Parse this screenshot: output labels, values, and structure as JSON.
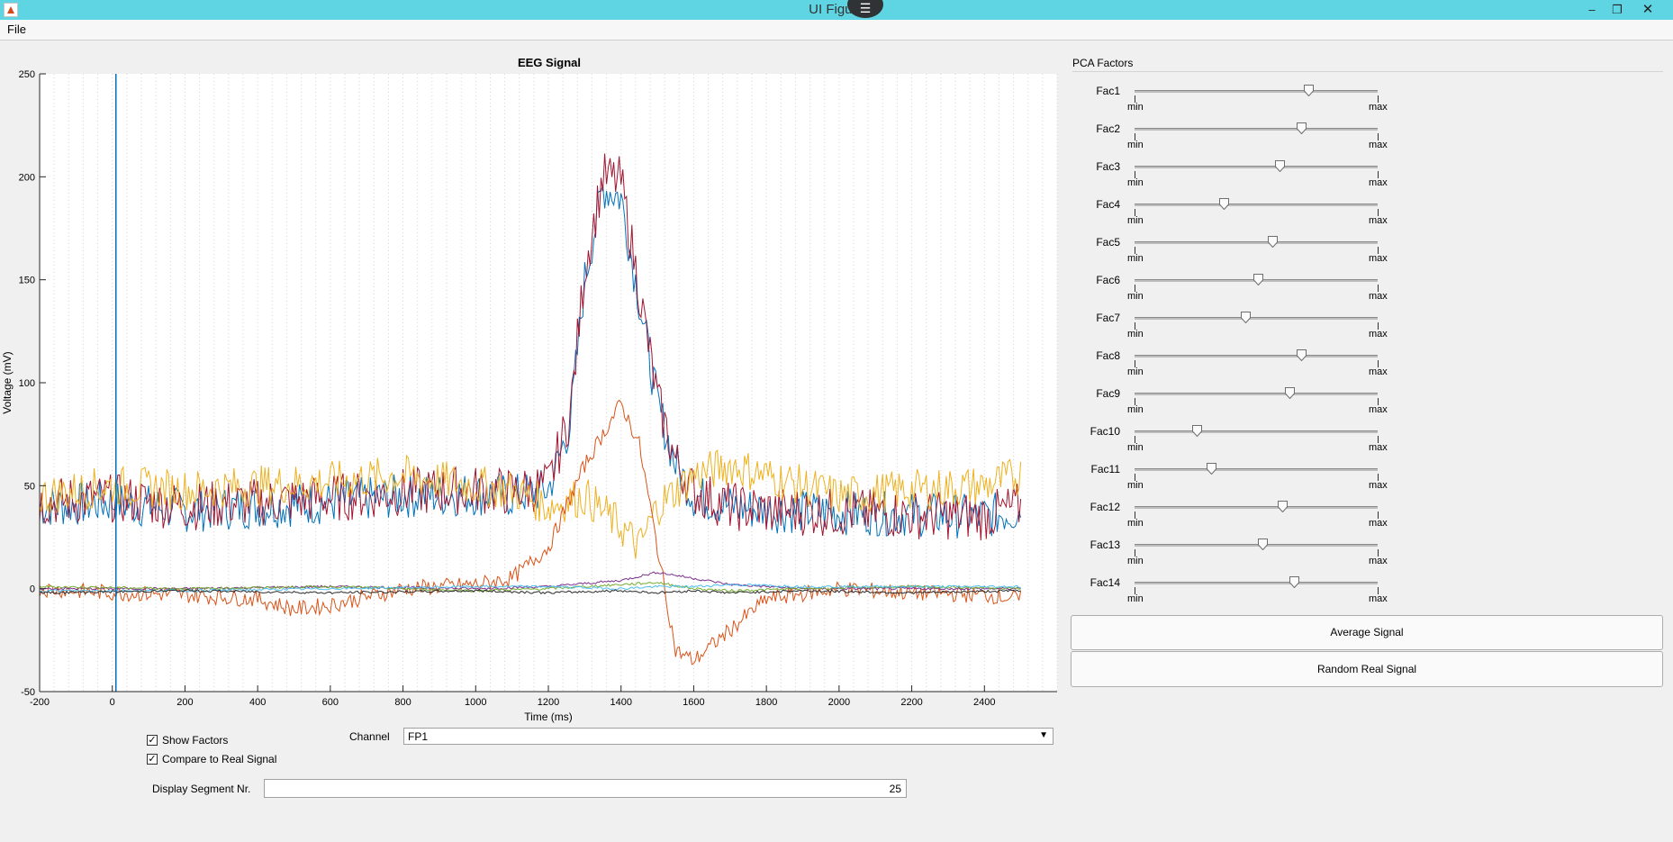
{
  "window": {
    "title": "UI Figure"
  },
  "menu": {
    "file": "File"
  },
  "plot": {
    "title": "EEG Signal",
    "xlabel": "Time (ms)",
    "ylabel": "Voltage (mV)"
  },
  "chart_data": {
    "type": "line",
    "title": "EEG Signal",
    "xlabel": "Time (ms)",
    "ylabel": "Voltage (mV)",
    "xlim": [
      -200,
      2600
    ],
    "ylim": [
      -50,
      250
    ],
    "xticks": [
      -200,
      0,
      200,
      400,
      600,
      800,
      1000,
      1200,
      1400,
      1600,
      1800,
      2000,
      2200,
      2400
    ],
    "yticks": [
      -50,
      0,
      50,
      100,
      150,
      200,
      250
    ],
    "vertical_marker_x": 10,
    "grid": "x-dotted",
    "series": [
      {
        "color": "#0072bd",
        "points": [
          [
            -200,
            40
          ],
          [
            0,
            42
          ],
          [
            200,
            38
          ],
          [
            400,
            40
          ],
          [
            600,
            42
          ],
          [
            800,
            45
          ],
          [
            1000,
            46
          ],
          [
            1100,
            45
          ],
          [
            1200,
            48
          ],
          [
            1260,
            80
          ],
          [
            1300,
            150
          ],
          [
            1350,
            195
          ],
          [
            1400,
            190
          ],
          [
            1450,
            140
          ],
          [
            1500,
            90
          ],
          [
            1550,
            60
          ],
          [
            1600,
            45
          ],
          [
            1700,
            40
          ],
          [
            1800,
            38
          ],
          [
            2000,
            37
          ],
          [
            2200,
            36
          ],
          [
            2400,
            35
          ],
          [
            2500,
            38
          ]
        ]
      },
      {
        "color": "#a2142f",
        "points": [
          [
            -200,
            42
          ],
          [
            0,
            44
          ],
          [
            200,
            40
          ],
          [
            400,
            42
          ],
          [
            600,
            44
          ],
          [
            800,
            47
          ],
          [
            1000,
            48
          ],
          [
            1100,
            47
          ],
          [
            1200,
            50
          ],
          [
            1260,
            85
          ],
          [
            1300,
            155
          ],
          [
            1350,
            200
          ],
          [
            1400,
            198
          ],
          [
            1450,
            145
          ],
          [
            1500,
            92
          ],
          [
            1550,
            62
          ],
          [
            1600,
            47
          ],
          [
            1700,
            40
          ],
          [
            1800,
            38
          ],
          [
            2000,
            37
          ],
          [
            2200,
            36
          ],
          [
            2400,
            35
          ],
          [
            2500,
            40
          ]
        ]
      },
      {
        "color": "#edb120",
        "points": [
          [
            -200,
            45
          ],
          [
            0,
            50
          ],
          [
            200,
            48
          ],
          [
            400,
            50
          ],
          [
            600,
            52
          ],
          [
            800,
            55
          ],
          [
            1000,
            50
          ],
          [
            1100,
            48
          ],
          [
            1200,
            40
          ],
          [
            1300,
            45
          ],
          [
            1400,
            30
          ],
          [
            1450,
            20
          ],
          [
            1500,
            40
          ],
          [
            1600,
            55
          ],
          [
            1700,
            60
          ],
          [
            1800,
            55
          ],
          [
            2000,
            45
          ],
          [
            2200,
            48
          ],
          [
            2400,
            50
          ],
          [
            2500,
            55
          ]
        ]
      },
      {
        "color": "#d95319",
        "points": [
          [
            -200,
            0
          ],
          [
            0,
            -2
          ],
          [
            200,
            -3
          ],
          [
            400,
            -5
          ],
          [
            500,
            -10
          ],
          [
            600,
            -8
          ],
          [
            800,
            0
          ],
          [
            1000,
            2
          ],
          [
            1100,
            5
          ],
          [
            1200,
            20
          ],
          [
            1300,
            60
          ],
          [
            1400,
            90
          ],
          [
            1450,
            70
          ],
          [
            1500,
            20
          ],
          [
            1550,
            -30
          ],
          [
            1600,
            -35
          ],
          [
            1700,
            -20
          ],
          [
            1800,
            -5
          ],
          [
            2000,
            0
          ],
          [
            2200,
            -2
          ],
          [
            2400,
            -3
          ],
          [
            2500,
            -5
          ]
        ]
      },
      {
        "color": "#7e2f8e",
        "points": [
          [
            -200,
            0
          ],
          [
            200,
            0
          ],
          [
            600,
            1
          ],
          [
            1000,
            0
          ],
          [
            1200,
            1
          ],
          [
            1400,
            4
          ],
          [
            1500,
            8
          ],
          [
            1600,
            5
          ],
          [
            1700,
            2
          ],
          [
            1900,
            0
          ],
          [
            2200,
            0
          ],
          [
            2500,
            0
          ]
        ]
      },
      {
        "color": "#77ac30",
        "points": [
          [
            -200,
            1
          ],
          [
            200,
            0
          ],
          [
            600,
            1
          ],
          [
            1000,
            -1
          ],
          [
            1200,
            0
          ],
          [
            1400,
            2
          ],
          [
            1500,
            3
          ],
          [
            1600,
            0
          ],
          [
            1700,
            -1
          ],
          [
            1900,
            0
          ],
          [
            2200,
            1
          ],
          [
            2500,
            0
          ]
        ]
      },
      {
        "color": "#4dbeee",
        "points": [
          [
            -200,
            -1
          ],
          [
            200,
            -1
          ],
          [
            600,
            0
          ],
          [
            1000,
            1
          ],
          [
            1200,
            1
          ],
          [
            1400,
            0
          ],
          [
            1500,
            1
          ],
          [
            1600,
            1
          ],
          [
            1700,
            2
          ],
          [
            1900,
            1
          ],
          [
            2200,
            1
          ],
          [
            2500,
            1
          ]
        ]
      },
      {
        "color": "#2a2a2a",
        "points": [
          [
            -200,
            -2
          ],
          [
            200,
            -1
          ],
          [
            600,
            -2
          ],
          [
            1000,
            -1
          ],
          [
            1200,
            -2
          ],
          [
            1400,
            -1
          ],
          [
            1500,
            -2
          ],
          [
            1600,
            -1
          ],
          [
            1700,
            -2
          ],
          [
            1900,
            -1
          ],
          [
            2200,
            -2
          ],
          [
            2500,
            -1
          ]
        ]
      }
    ]
  },
  "pca": {
    "title": "PCA Factors",
    "min_label": "min",
    "max_label": "max",
    "factors": [
      {
        "label": "Fac1",
        "value": 0.72
      },
      {
        "label": "Fac2",
        "value": 0.69
      },
      {
        "label": "Fac3",
        "value": 0.6
      },
      {
        "label": "Fac4",
        "value": 0.37
      },
      {
        "label": "Fac5",
        "value": 0.57
      },
      {
        "label": "Fac6",
        "value": 0.51
      },
      {
        "label": "Fac7",
        "value": 0.46
      },
      {
        "label": "Fac8",
        "value": 0.69
      },
      {
        "label": "Fac9",
        "value": 0.64
      },
      {
        "label": "Fac10",
        "value": 0.26
      },
      {
        "label": "Fac11",
        "value": 0.32
      },
      {
        "label": "Fac12",
        "value": 0.61
      },
      {
        "label": "Fac13",
        "value": 0.53
      },
      {
        "label": "Fac14",
        "value": 0.66
      }
    ]
  },
  "buttons": {
    "average": "Average Signal",
    "random": "Random Real Signal"
  },
  "controls": {
    "show_factors": {
      "label": "Show Factors",
      "checked": true
    },
    "compare_real": {
      "label": "Compare to Real Signal",
      "checked": true
    },
    "channel_label": "Channel",
    "channel_value": "FP1",
    "segment_label": "Display Segment Nr.",
    "segment_value": "25"
  }
}
